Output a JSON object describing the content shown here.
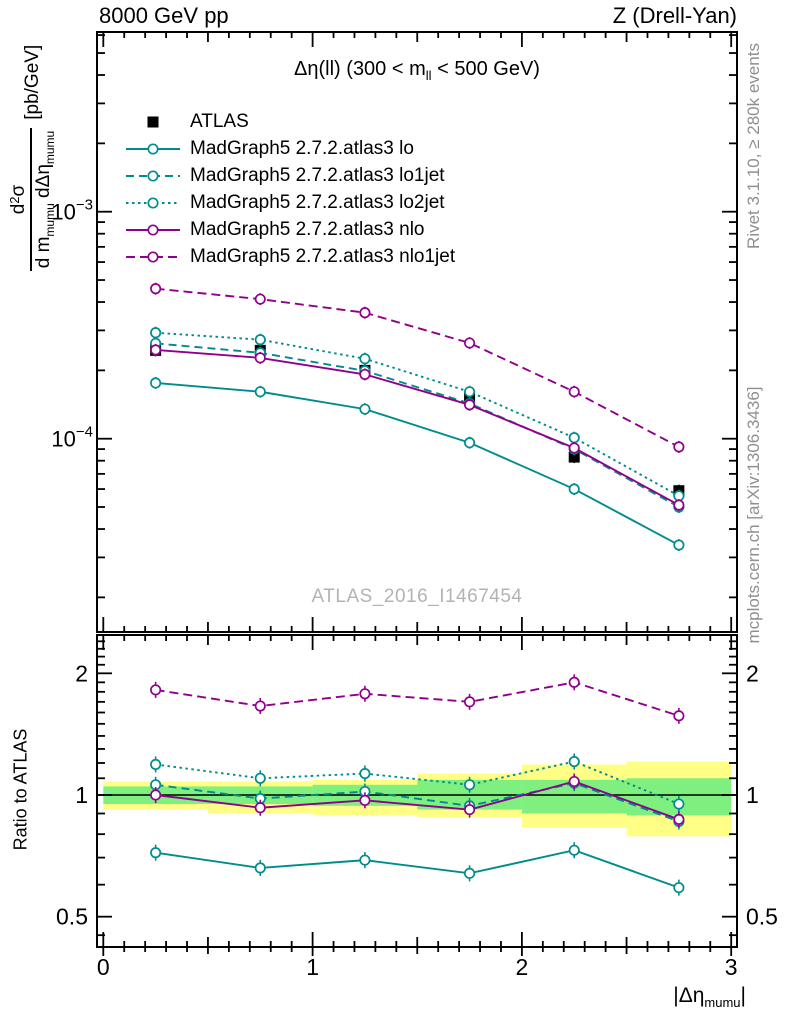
{
  "header": {
    "left": "8000 GeV pp",
    "right": "Z (Drell-Yan)"
  },
  "title": {
    "pre": "Δη(ll) (300 < m",
    "sub": "ll",
    "post": " < 500 GeV)"
  },
  "watermark": "ATLAS_2016_I1467454",
  "side_notes": {
    "top": "Rivet 3.1.10, ≥ 280k events",
    "bottom": "mcplots.cern.ch [arXiv:1306.3436]"
  },
  "y_axis_label": {
    "num_d": "d",
    "num_exp": "2",
    "num_sym": "σ",
    "den_p1": "d m",
    "den_sub1": "mumu",
    "den_p2": " dΔη",
    "den_sub2": "mumu",
    "unit": "[pb/GeV]"
  },
  "x_axis_label": {
    "pre": "|Δη",
    "sub": "mumu",
    "post": "|"
  },
  "ratio_axis_label": "Ratio to ATLAS",
  "colors": {
    "teal": "#008C8C",
    "purple": "#91008D",
    "yellow_band": "#FFFF85",
    "green_band": "#7FF07F",
    "gray_note": "#8F8F8F",
    "gray_watermark": "#B3B3B3"
  },
  "chart_data": {
    "type": "line",
    "x_values": [
      0.25,
      0.75,
      1.25,
      1.75,
      2.25,
      2.75
    ],
    "x_range": [
      -0.03,
      3.03
    ],
    "main_y_log_range": [
      1.45e-05,
      0.00615
    ],
    "ratio_y_log_range": [
      0.42,
      2.5
    ],
    "x_ticks": {
      "values": [
        0,
        1,
        2,
        3
      ],
      "labels": [
        "0",
        "1",
        "2",
        "3"
      ]
    },
    "main_y_labeled_ticks": [
      {
        "v": 0.001,
        "mant": "10",
        "exp": "−3"
      },
      {
        "v": 0.0001,
        "mant": "10",
        "exp": "−4"
      }
    ],
    "ratio_labeled_ticks": [
      {
        "v": 2,
        "label": "2"
      },
      {
        "v": 1,
        "label": "1"
      },
      {
        "v": 0.5,
        "label": "0.5"
      }
    ],
    "ratio_minor_ticks": [
      2.4,
      2.3,
      2.2,
      2.1,
      1.9,
      1.8,
      1.7,
      1.6,
      1.5,
      1.4,
      1.3,
      1.2,
      1.1,
      0.9,
      0.8,
      0.7,
      0.6,
      0.45
    ],
    "series": [
      {
        "name": "ATLAS",
        "color": "#000000",
        "marker": "square",
        "line": false,
        "dash": "",
        "values": [
          0.000245,
          0.000245,
          0.0002,
          0.000153,
          8.3e-05,
          5.9e-05
        ],
        "ratio": null
      },
      {
        "name": "MadGraph5 2.7.2.atlas3 lo",
        "color": "#008C8C",
        "marker": "circle",
        "line": true,
        "dash": "",
        "values": [
          0.000176,
          0.000161,
          0.000135,
          9.6e-05,
          6e-05,
          3.4e-05
        ],
        "ratio": [
          0.72,
          0.66,
          0.69,
          0.64,
          0.73,
          0.59
        ]
      },
      {
        "name": "MadGraph5 2.7.2.atlas3 lo1jet",
        "color": "#008C8C",
        "marker": "circle",
        "line": true,
        "dash": "8,5",
        "values": [
          0.000263,
          0.000239,
          0.000199,
          0.000143,
          9e-05,
          5e-05
        ],
        "ratio": [
          1.06,
          0.98,
          1.02,
          0.94,
          1.07,
          0.86
        ]
      },
      {
        "name": "MadGraph5 2.7.2.atlas3 lo2jet",
        "color": "#008C8C",
        "marker": "circle",
        "line": true,
        "dash": "2.5,3.5",
        "values": [
          0.000293,
          0.000273,
          0.000225,
          0.000161,
          0.000101,
          5.6e-05
        ],
        "ratio": [
          1.19,
          1.1,
          1.13,
          1.06,
          1.21,
          0.95
        ]
      },
      {
        "name": "MadGraph5 2.7.2.atlas3 nlo",
        "color": "#91008D",
        "marker": "circle",
        "line": true,
        "dash": "",
        "values": [
          0.000246,
          0.000227,
          0.000192,
          0.000141,
          9.1e-05,
          5.1e-05
        ],
        "ratio": [
          1.0,
          0.93,
          0.97,
          0.92,
          1.08,
          0.87
        ]
      },
      {
        "name": "MadGraph5 2.7.2.atlas3 nlo1jet",
        "color": "#91008D",
        "marker": "circle",
        "line": true,
        "dash": "9,5",
        "values": [
          0.000458,
          0.000412,
          0.000359,
          0.000264,
          0.000161,
          9.2e-05
        ],
        "ratio": [
          1.82,
          1.66,
          1.78,
          1.7,
          1.9,
          1.57
        ]
      }
    ],
    "ratio_bands": {
      "yellow": [
        [
          0,
          0.5,
          0.92,
          1.08
        ],
        [
          0.5,
          1,
          0.9,
          1.08
        ],
        [
          1,
          1.5,
          0.89,
          1.09
        ],
        [
          1.5,
          2,
          0.88,
          1.13
        ],
        [
          2,
          2.5,
          0.83,
          1.19
        ],
        [
          2.5,
          3,
          0.79,
          1.21
        ]
      ],
      "green": [
        [
          0,
          0.5,
          0.95,
          1.05
        ],
        [
          0.5,
          1,
          0.95,
          1.05
        ],
        [
          1,
          1.5,
          0.94,
          1.06
        ],
        [
          1.5,
          2,
          0.92,
          1.09
        ],
        [
          2,
          2.5,
          0.9,
          1.09
        ],
        [
          2.5,
          3,
          0.89,
          1.1
        ]
      ]
    }
  }
}
